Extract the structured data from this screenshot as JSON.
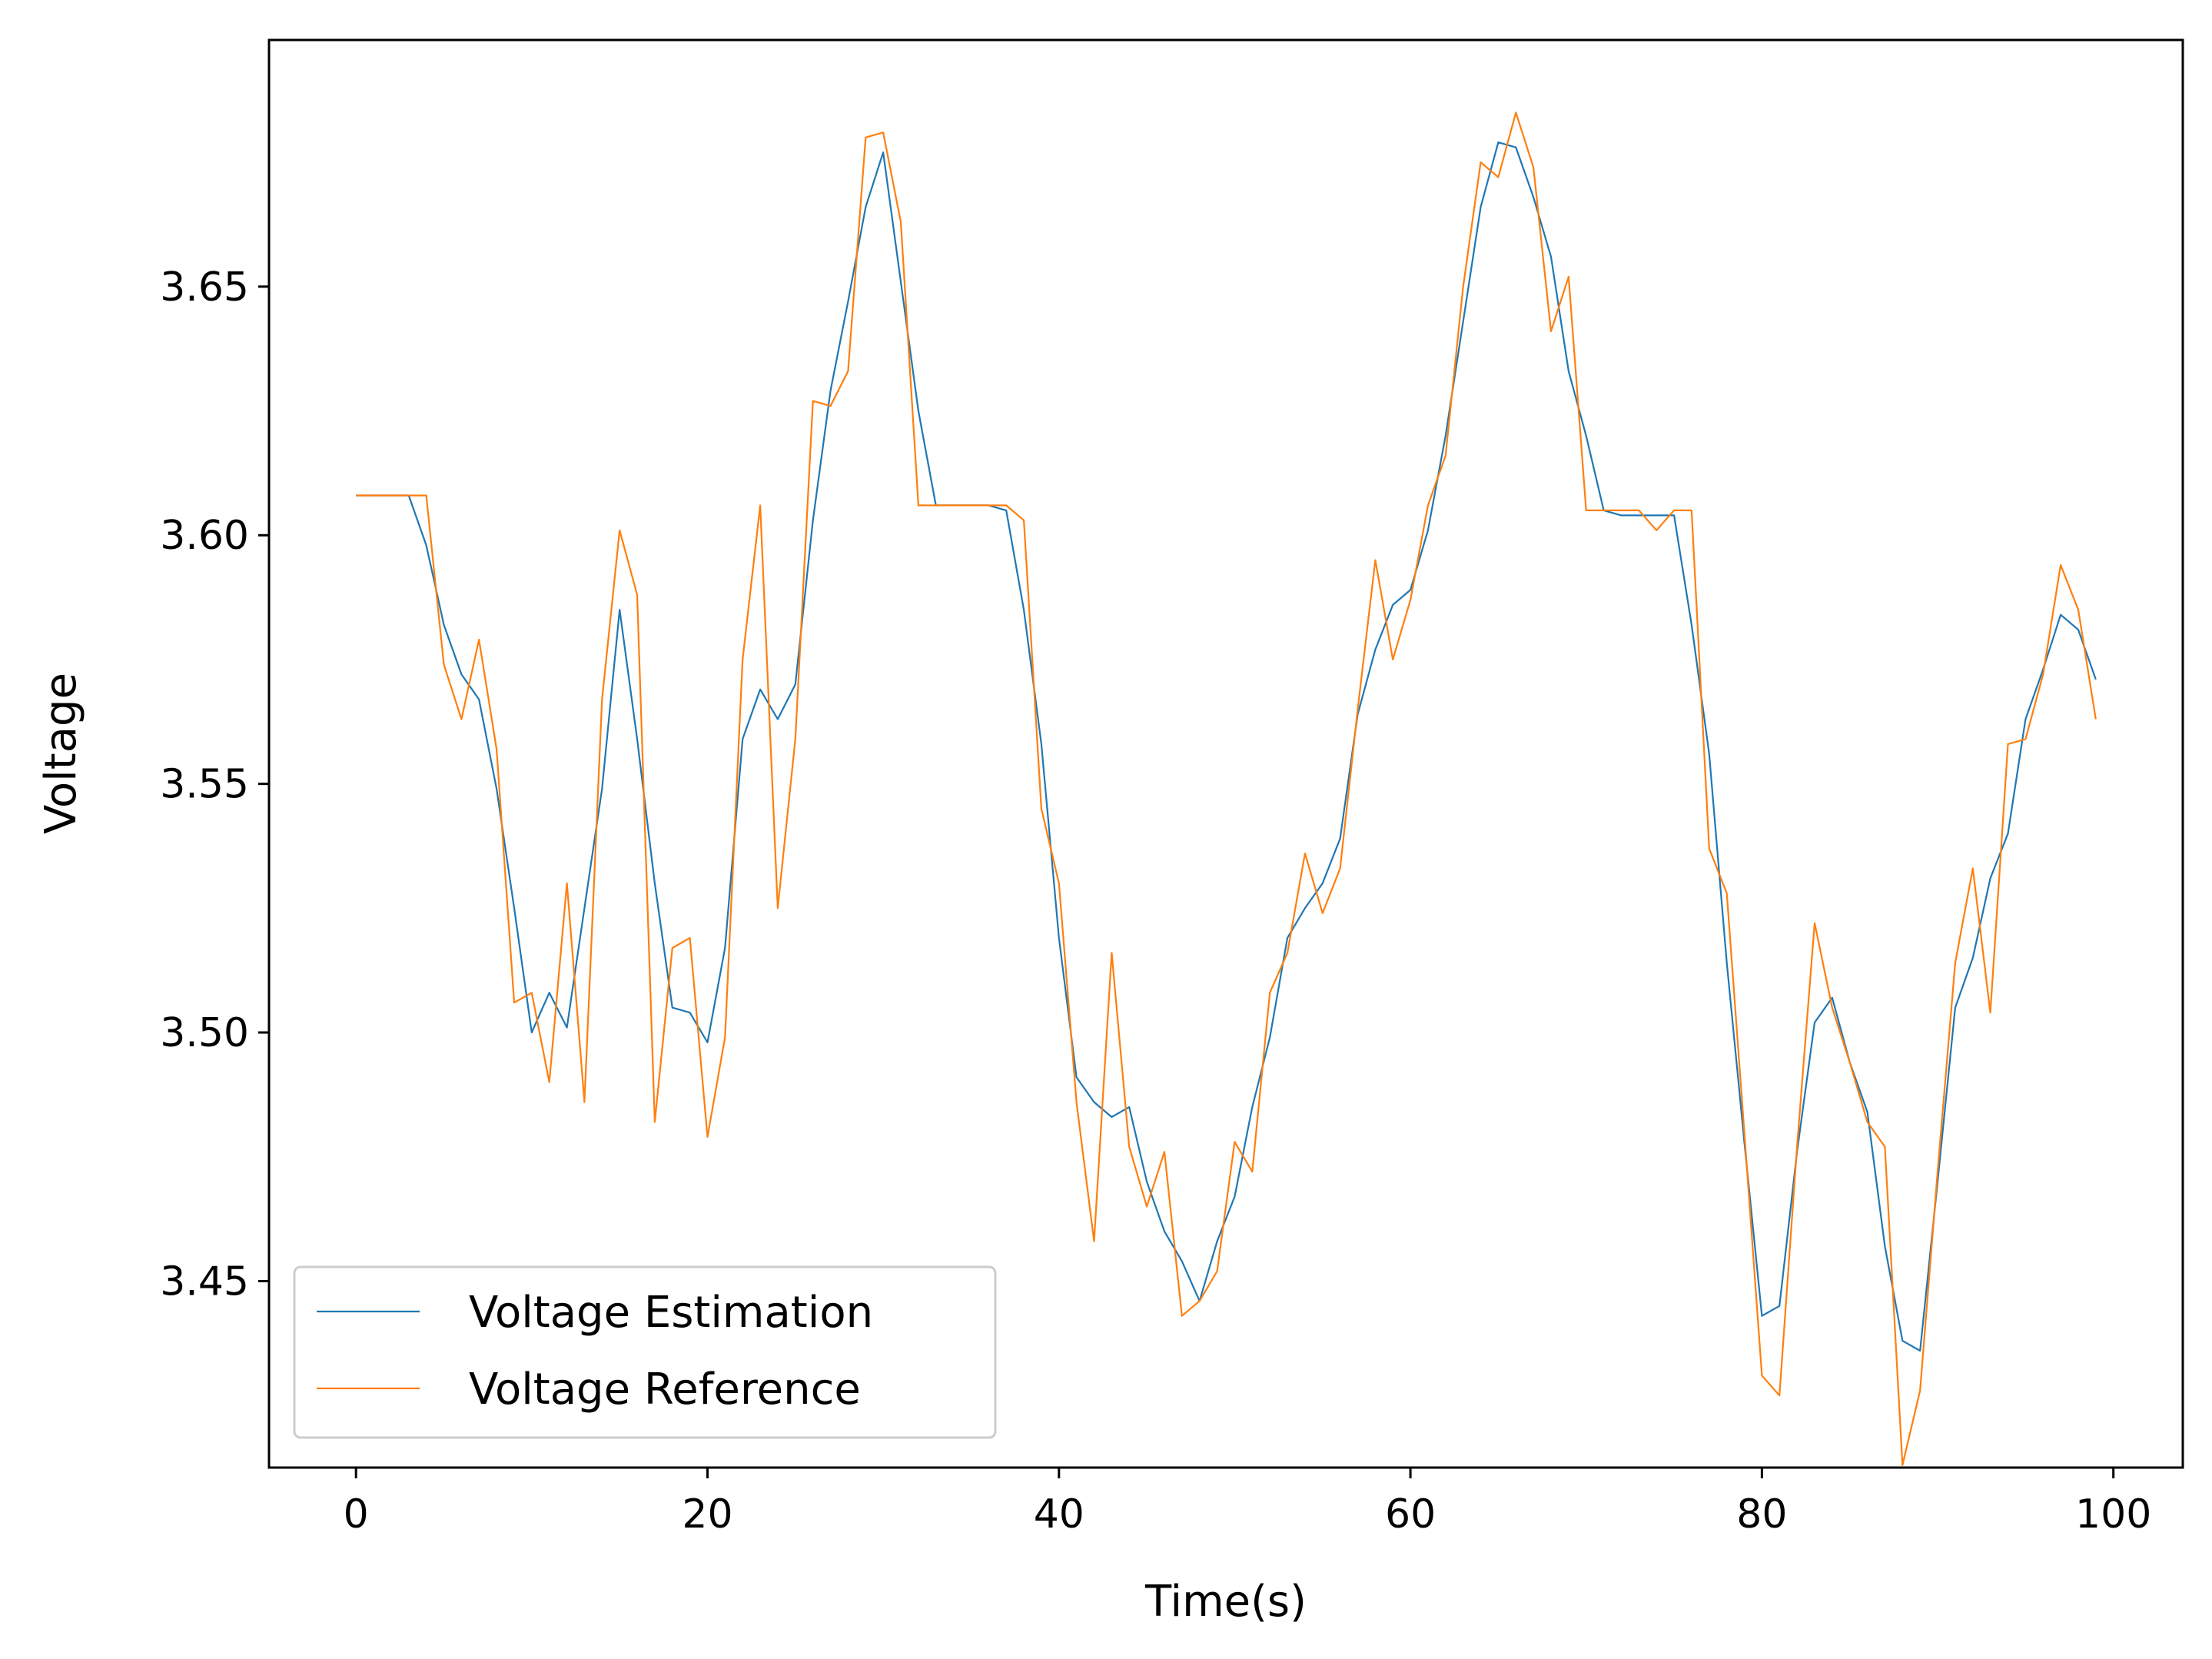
{
  "chart_data": {
    "type": "line",
    "title": "",
    "xlabel": "Time(s)",
    "ylabel": "Voltage",
    "xlim": [
      -4.95,
      103.95
    ],
    "ylim": [
      3.4125,
      3.6996
    ],
    "xticks": [
      0,
      20,
      40,
      60,
      80,
      100
    ],
    "xtick_labels": [
      "0",
      "20",
      "40",
      "60",
      "80",
      "100"
    ],
    "yticks": [
      3.45,
      3.5,
      3.55,
      3.6,
      3.65
    ],
    "ytick_labels": [
      "3.45",
      "3.50",
      "3.55",
      "3.60",
      "3.65"
    ],
    "grid": false,
    "legend": {
      "position": "lower-left"
    },
    "x": [
      0,
      1,
      2,
      3,
      4,
      5,
      6,
      7,
      8,
      9,
      10,
      11,
      12,
      13,
      14,
      15,
      16,
      17,
      18,
      19,
      20,
      21,
      22,
      23,
      24,
      25,
      26,
      27,
      28,
      29,
      30,
      31,
      32,
      33,
      34,
      35,
      36,
      37,
      38,
      39,
      40,
      41,
      42,
      43,
      44,
      45,
      46,
      47,
      48,
      49,
      50,
      51,
      52,
      53,
      54,
      55,
      56,
      57,
      58,
      59,
      60,
      61,
      62,
      63,
      64,
      65,
      66,
      67,
      68,
      69,
      70,
      71,
      72,
      73,
      74,
      75,
      76,
      77,
      78,
      79,
      80,
      81,
      82,
      83,
      84,
      85,
      86,
      87,
      88,
      89,
      90,
      91,
      92,
      93,
      94,
      95,
      96,
      97,
      98,
      99
    ],
    "series": [
      {
        "name": "Voltage Estimation",
        "color": "#1f77b4",
        "values": [
          3.608,
          3.608,
          3.608,
          3.608,
          3.598,
          3.582,
          3.572,
          3.567,
          3.549,
          3.525,
          3.5,
          3.508,
          3.501,
          3.525,
          3.549,
          3.585,
          3.559,
          3.53,
          3.505,
          3.504,
          3.498,
          3.517,
          3.559,
          3.569,
          3.563,
          3.57,
          3.603,
          3.629,
          3.647,
          3.666,
          3.677,
          3.651,
          3.625,
          3.606,
          3.606,
          3.606,
          3.606,
          3.605,
          3.585,
          3.558,
          3.519,
          3.491,
          3.486,
          3.483,
          3.485,
          3.47,
          3.46,
          3.454,
          3.446,
          3.458,
          3.467,
          3.485,
          3.499,
          3.519,
          3.525,
          3.53,
          3.539,
          3.564,
          3.577,
          3.586,
          3.589,
          3.601,
          3.62,
          3.643,
          3.666,
          3.679,
          3.678,
          3.668,
          3.656,
          3.633,
          3.62,
          3.605,
          3.604,
          3.604,
          3.604,
          3.604,
          3.582,
          3.556,
          3.514,
          3.478,
          3.443,
          3.445,
          3.476,
          3.502,
          3.507,
          3.494,
          3.484,
          3.457,
          3.438,
          3.436,
          3.47,
          3.505,
          3.515,
          3.531,
          3.54,
          3.563,
          3.573,
          3.584,
          3.581,
          3.571
        ]
      },
      {
        "name": "Voltage Reference",
        "color": "#ff7f0e",
        "values": [
          3.608,
          3.608,
          3.608,
          3.608,
          3.608,
          3.574,
          3.563,
          3.579,
          3.557,
          3.506,
          3.508,
          3.49,
          3.53,
          3.486,
          3.567,
          3.601,
          3.588,
          3.482,
          3.517,
          3.519,
          3.479,
          3.499,
          3.575,
          3.606,
          3.525,
          3.559,
          3.627,
          3.626,
          3.633,
          3.68,
          3.681,
          3.663,
          3.606,
          3.606,
          3.606,
          3.606,
          3.606,
          3.606,
          3.603,
          3.545,
          3.53,
          3.486,
          3.458,
          3.516,
          3.477,
          3.465,
          3.476,
          3.443,
          3.446,
          3.452,
          3.478,
          3.472,
          3.508,
          3.516,
          3.536,
          3.524,
          3.533,
          3.565,
          3.595,
          3.575,
          3.587,
          3.606,
          3.616,
          3.65,
          3.675,
          3.672,
          3.685,
          3.674,
          3.641,
          3.652,
          3.605,
          3.605,
          3.605,
          3.605,
          3.601,
          3.605,
          3.605,
          3.537,
          3.528,
          3.48,
          3.431,
          3.427,
          3.477,
          3.522,
          3.505,
          3.494,
          3.482,
          3.477,
          3.413,
          3.428,
          3.472,
          3.514,
          3.533,
          3.504,
          3.558,
          3.559,
          3.572,
          3.594,
          3.585,
          3.563
        ]
      }
    ]
  }
}
